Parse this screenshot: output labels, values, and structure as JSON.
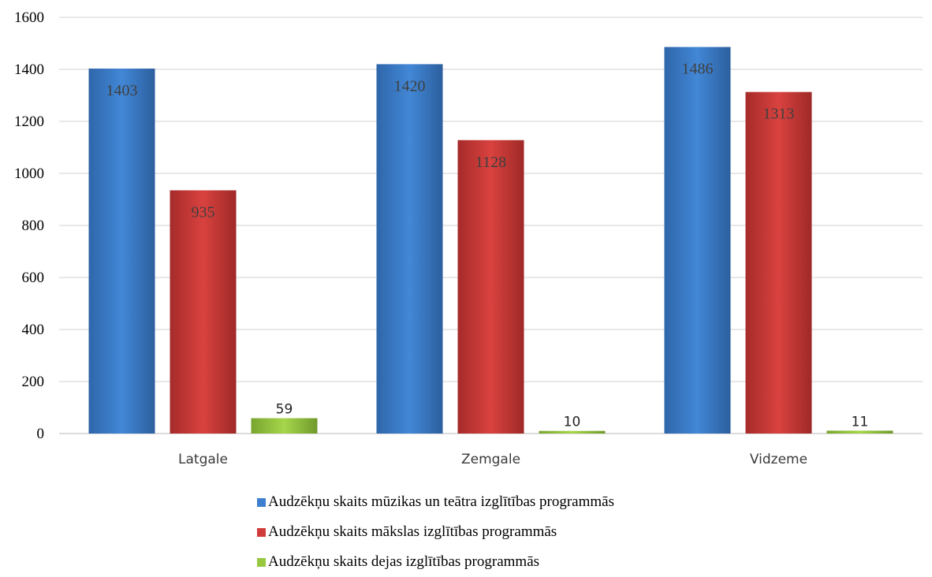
{
  "chart_data": {
    "type": "bar",
    "categories": [
      "Latgale",
      "Zemgale",
      "Vidzeme"
    ],
    "series": [
      {
        "name": "Audzēkņu skaits mūzikas un teātra izglītības programmās",
        "values": [
          1403,
          1420,
          1486
        ],
        "color": "#3d7fce"
      },
      {
        "name": "Audzēkņu skaits mākslas izglītības programmās",
        "values": [
          935,
          1128,
          1313
        ],
        "color": "#cf3c3a"
      },
      {
        "name": "Audzēkņu skaits dejas izglītības programmās",
        "values": [
          59,
          10,
          11
        ],
        "color": "#97c840"
      }
    ],
    "ylim": [
      0,
      1600
    ],
    "yticks": [
      0,
      200,
      400,
      600,
      800,
      1000,
      1200,
      1400,
      1600
    ],
    "grid": true,
    "legend": "bottom",
    "title": "",
    "xlabel": "",
    "ylabel": ""
  }
}
